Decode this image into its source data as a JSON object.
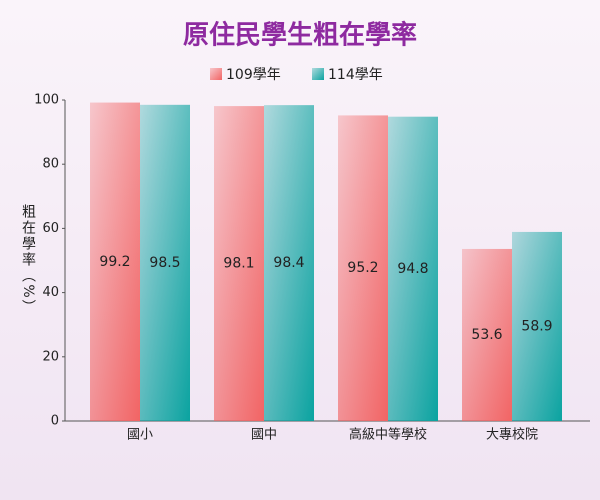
{
  "chart_data": {
    "type": "bar",
    "title": "原住民學生粗在學率",
    "y_label": "粗在學率（%）",
    "categories": [
      "國小",
      "國中",
      "高級中等學校",
      "大專校院"
    ],
    "series": [
      {
        "name": "109學年",
        "color": "#f26464",
        "values": [
          99.2,
          98.1,
          95.2,
          53.6
        ]
      },
      {
        "name": "114學年",
        "color": "#0aa3a0",
        "values": [
          98.5,
          98.4,
          94.8,
          58.9
        ]
      }
    ],
    "ylim": [
      0,
      100
    ],
    "yticks": [
      0,
      20,
      40,
      60,
      80,
      100
    ],
    "grid": false,
    "legend": "top"
  }
}
